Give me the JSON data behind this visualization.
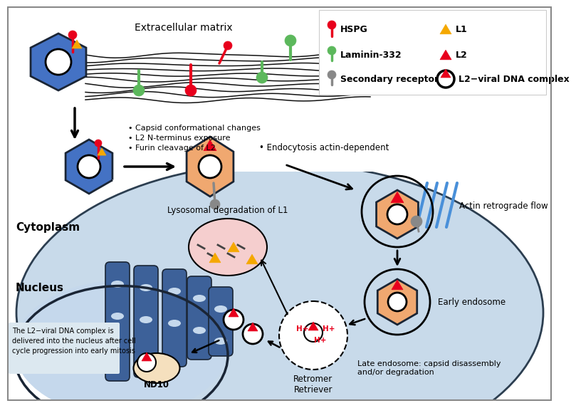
{
  "bg_color": "#ffffff",
  "cell_color": "#c8daea",
  "cell_border": "#2c3e50",
  "nucleus_color": "#3d6199",
  "nucleus_light": "#c5d8ec",
  "virion_blue": "#4472c4",
  "virion_peach": "#f0a870",
  "red": "#e8001c",
  "green": "#5cb85c",
  "yellow": "#f5a800",
  "gray": "#888888",
  "extracellular_label": "Extracellular matrix",
  "cytoplasm_label": "Cytoplasm",
  "nucleus_label": "Nucleus",
  "text_capsid": "• Capsid conformational changes\n• L2 N-terminus exposure\n• Furin cleavage of L2",
  "text_endocytosis": "• Endocytosis actin-dependent",
  "text_lysosomal": "Lysosomal degradation of L1",
  "text_actin": "Actin retrograde flow",
  "text_early": "Early endosome",
  "text_late": "Late endosome: capsid disassembly\nand/or degradation",
  "text_retromer": "Retromer\nRetriever",
  "text_nd10": "ND10",
  "text_nucleus_info": "The L2−viral DNA complex is\ndelivered into the nucleus after cell\ncycle progression into early mitosis",
  "legend_hspg": "HSPG",
  "legend_l1": "L1",
  "legend_laminin": "Laminin-332",
  "legend_l2": "L2",
  "legend_secondary": "Secondary receptor",
  "legend_complex": "L2−viral DNA complex"
}
